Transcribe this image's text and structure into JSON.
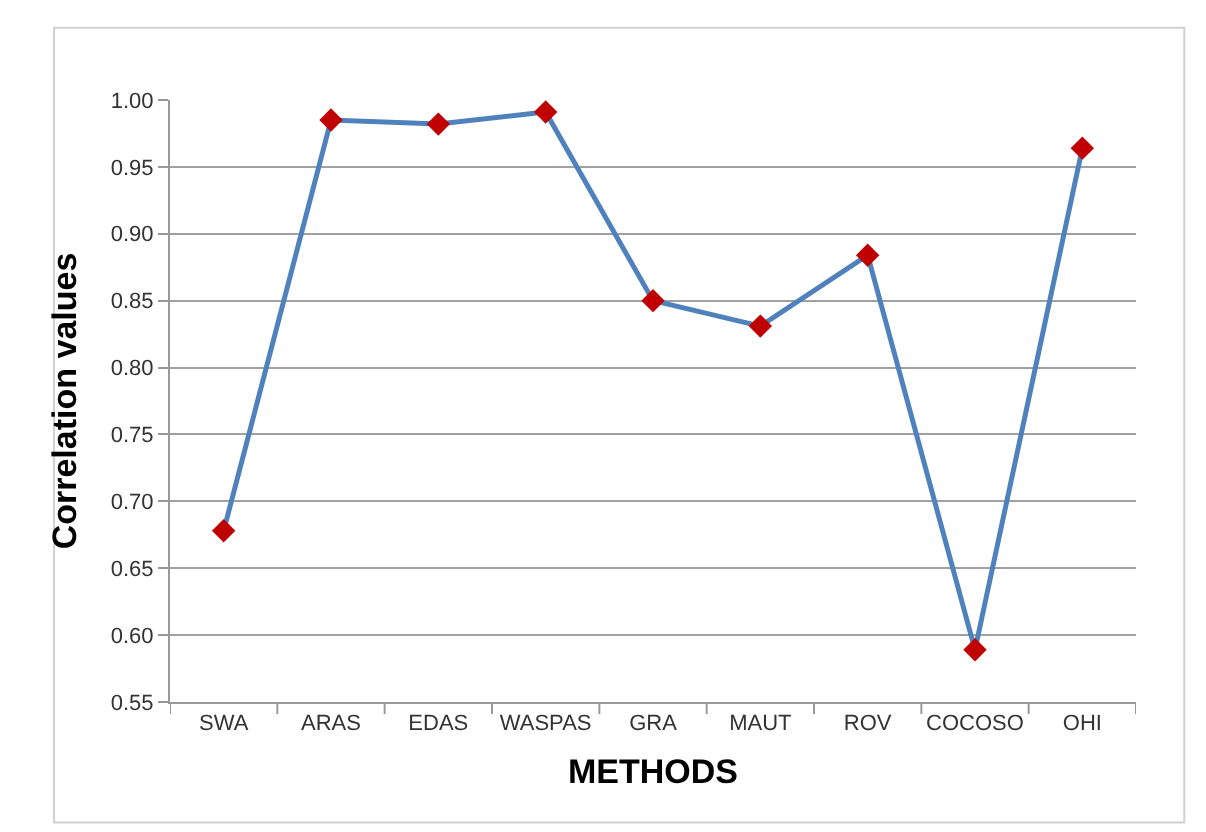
{
  "chart_data": {
    "type": "line",
    "xlabel": "METHODS",
    "ylabel": "Correlation values",
    "categories": [
      "SWA",
      "ARAS",
      "EDAS",
      "WASPAS",
      "GRA",
      "MAUT",
      "ROV",
      "COCOSO",
      "OHI"
    ],
    "series": [
      {
        "color": "#4f81bd",
        "colors": [
          "#c00000",
          "#c00000",
          "#c00000",
          "#c00000",
          "#c00000",
          "#c00000",
          "#c00000",
          "#c00000",
          "#c00000"
        ],
        "values": [
          0.678,
          0.985,
          0.982,
          0.991,
          0.85,
          0.831,
          0.884,
          0.589,
          0.964
        ]
      }
    ],
    "ylim": [
      0.55,
      1.0
    ],
    "yticks": [
      {
        "value": 0.55,
        "label": "0.55"
      },
      {
        "value": 0.6,
        "label": "0.60"
      },
      {
        "value": 0.65,
        "label": "0.65"
      },
      {
        "value": 0.7,
        "label": "0.70"
      },
      {
        "value": 0.75,
        "label": "0.75"
      },
      {
        "value": 0.8,
        "label": "0.80"
      },
      {
        "value": 0.85,
        "label": "0.85"
      },
      {
        "value": 0.9,
        "label": "0.90"
      },
      {
        "value": 0.95,
        "label": "0.95"
      },
      {
        "value": 1.0,
        "label": "1.00"
      }
    ],
    "grid": "y",
    "legend": false,
    "marker": "diamond",
    "line_style": "solid"
  }
}
